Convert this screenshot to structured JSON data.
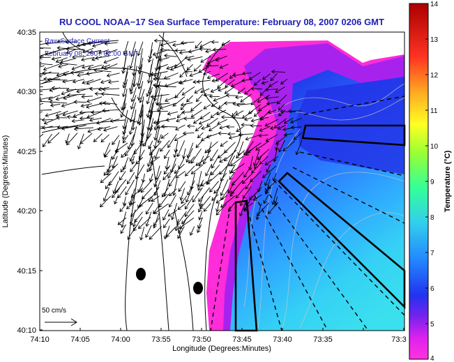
{
  "title": "RU COOL  NOAA−17  Sea Surface Temperature:  February 08, 2007 0206 GMT",
  "legend_line1": "Raw Surface Current",
  "legend_line2": "February 08, 2007 02:00 GMT",
  "scale_label": "50 cm/s",
  "xlabel": "Longitude (Degrees:Minutes)",
  "ylabel": "Latitude (Degrees:Minutes)",
  "colorbar_label": "Temperature (°C)",
  "x_ticks": [
    "74:10",
    "74:05",
    "74:00",
    "73:55",
    "73:50",
    "73:45",
    "73:40",
    "73:35",
    "73:3"
  ],
  "y_ticks": [
    "40:35",
    "40:30",
    "40:25",
    "40:20",
    "40:15",
    "40:10"
  ],
  "colorbar_ticks": [
    "14",
    "13",
    "12",
    "11",
    "10",
    "9",
    "8",
    "7",
    "6",
    "5",
    "4"
  ],
  "colors": {
    "title": "#1f1fb4",
    "legend_text": "#1f1fb4",
    "land": "#ffffff",
    "colormap": [
      "#ff33dd",
      "#dd22ee",
      "#2222ee",
      "#2288ff",
      "#33ddee",
      "#33ff99",
      "#aaff33",
      "#ffff22",
      "#ff9922",
      "#ff2222",
      "#aa0000"
    ]
  }
}
